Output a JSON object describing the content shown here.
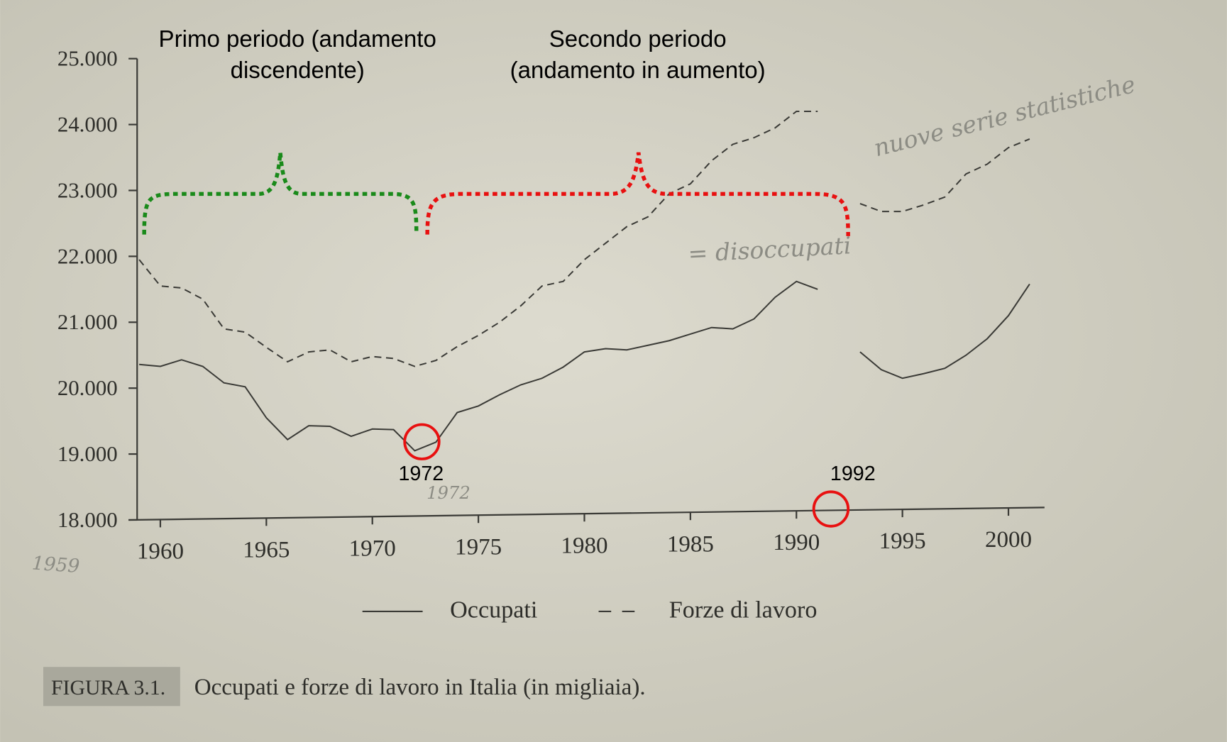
{
  "chart_data": {
    "type": "line",
    "annotations": [
      "Primo periodo (andamento discendente)",
      "Secondo periodo (andamento in aumento)",
      "1972",
      "1992"
    ],
    "handwritten_notes": [
      "1959",
      "1972",
      "nuove serie statistiche",
      "= disoccupati"
    ],
    "caption_label": "FIGURA 3.1.",
    "caption": "Occupati e forze di lavoro in Italia (in migliaia).",
    "x": [
      1959,
      1960,
      1961,
      1962,
      1963,
      1964,
      1965,
      1966,
      1967,
      1968,
      1969,
      1970,
      1971,
      1972,
      1973,
      1974,
      1975,
      1976,
      1977,
      1978,
      1979,
      1980,
      1981,
      1982,
      1983,
      1984,
      1985,
      1986,
      1987,
      1988,
      1989,
      1990,
      1991,
      1992,
      1993,
      1994,
      1995,
      1996,
      1997,
      1998,
      1999,
      2000,
      2001
    ],
    "series": [
      {
        "name": "Occupati",
        "color": "#3a3a36",
        "dash": "solid",
        "values": [
          20360,
          20330,
          20430,
          20330,
          20080,
          20020,
          19550,
          19220,
          19430,
          19420,
          19270,
          19380,
          19370,
          19050,
          19180,
          19630,
          19730,
          19900,
          20050,
          20150,
          20320,
          20550,
          20600,
          20580,
          20650,
          20720,
          20820,
          20920,
          20900,
          21050,
          21380,
          21620,
          21500,
          null,
          20550,
          20280,
          20150,
          20220,
          20300,
          20500,
          20750,
          21100,
          21580
        ]
      },
      {
        "name": "Forze di lavoro",
        "color": "#3a3a36",
        "dash": "dashed",
        "values": [
          21950,
          21550,
          21520,
          21350,
          20900,
          20850,
          20620,
          20400,
          20550,
          20580,
          20400,
          20480,
          20450,
          20330,
          20420,
          20630,
          20800,
          21000,
          21250,
          21550,
          21620,
          21950,
          22200,
          22450,
          22600,
          22950,
          23100,
          23450,
          23700,
          23800,
          23950,
          24200,
          24200,
          null,
          22800,
          22680,
          22680,
          22780,
          22900,
          23250,
          23400,
          23650,
          23780
        ]
      }
    ],
    "xlim": [
      1958.5,
      2001.7
    ],
    "xticks": [
      1960,
      1965,
      1970,
      1975,
      1980,
      1985,
      1990,
      1995,
      2000
    ],
    "ylim": [
      18000,
      25000
    ],
    "yticks": [
      {
        "value": 18000,
        "label": "18.000"
      },
      {
        "value": 19000,
        "label": "19.000"
      },
      {
        "value": 20000,
        "label": "20.000"
      },
      {
        "value": 21000,
        "label": "21.000"
      },
      {
        "value": 22000,
        "label": "22.000"
      },
      {
        "value": 23000,
        "label": "23.000"
      },
      {
        "value": 24000,
        "label": "24.000"
      },
      {
        "value": 25000,
        "label": "25.000"
      }
    ],
    "legend": "bottom"
  }
}
